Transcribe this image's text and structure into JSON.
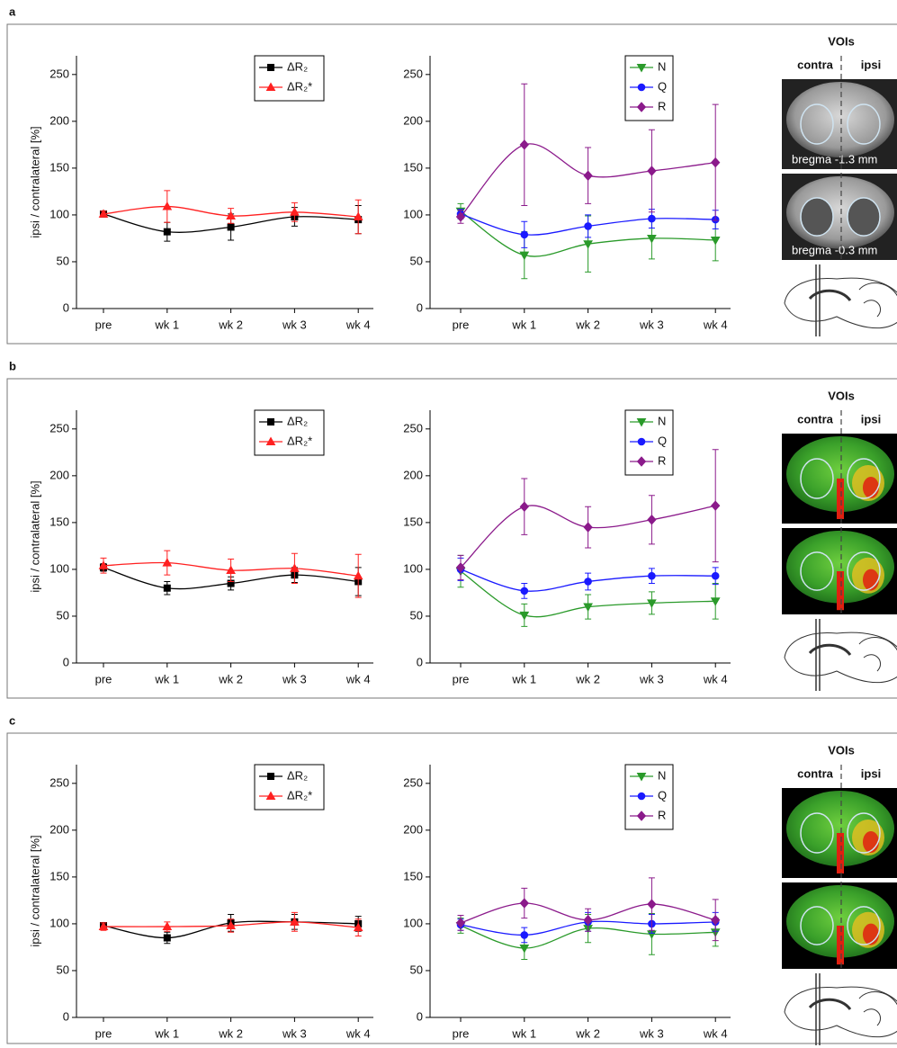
{
  "panels": [
    {
      "label": "a",
      "voi": {
        "title": "VOIs",
        "left": "contra",
        "right": "ipsi",
        "captions": [
          "bregma -1.3 mm",
          "bregma -0.3 mm"
        ]
      }
    },
    {
      "label": "b",
      "voi": {
        "title": "VOIs",
        "left": "contra",
        "right": "ipsi"
      }
    },
    {
      "label": "c",
      "voi": {
        "title": "VOIs",
        "left": "contra",
        "right": "ipsi"
      }
    }
  ],
  "chart_data": [
    {
      "type": "line",
      "ylabel": "ipsi / contralateral [%]",
      "categories": [
        "pre",
        "wk 1",
        "wk 2",
        "wk 3",
        "wk 4"
      ],
      "ylim": [
        0,
        270
      ],
      "yticks": [
        0,
        50,
        100,
        150,
        200,
        250
      ],
      "series": [
        {
          "name": "ΔR₂",
          "color": "#000000",
          "marker": "square",
          "values": [
            101,
            82,
            87,
            98,
            95
          ],
          "errors": [
            3,
            10,
            14,
            10,
            15
          ]
        },
        {
          "name": "ΔR₂*",
          "color": "#ff2020",
          "marker": "triangle-up",
          "values": [
            101,
            109,
            99,
            103,
            98
          ],
          "errors": [
            3,
            17,
            8,
            10,
            18
          ]
        }
      ]
    },
    {
      "type": "line",
      "categories": [
        "pre",
        "wk 1",
        "wk 2",
        "wk 3",
        "wk 4"
      ],
      "ylim": [
        0,
        270
      ],
      "yticks": [
        0,
        50,
        100,
        150,
        200,
        250
      ],
      "series": [
        {
          "name": "N",
          "color": "#2a9a2a",
          "marker": "triangle-down",
          "values": [
            104,
            57,
            69,
            75,
            73
          ],
          "errors": [
            8,
            25,
            30,
            22,
            22
          ]
        },
        {
          "name": "Q",
          "color": "#1a1aff",
          "marker": "circle",
          "values": [
            101,
            79,
            88,
            96,
            95
          ],
          "errors": [
            5,
            14,
            12,
            10,
            10
          ]
        },
        {
          "name": "R",
          "color": "#8b1a8b",
          "marker": "diamond",
          "values": [
            98,
            175,
            142,
            147,
            156
          ],
          "errors": [
            7,
            65,
            30,
            44,
            62
          ]
        }
      ]
    },
    {
      "type": "line",
      "ylabel": "ipsi / contralateral [%]",
      "categories": [
        "pre",
        "wk 1",
        "wk 2",
        "wk 3",
        "wk 4"
      ],
      "ylim": [
        0,
        270
      ],
      "yticks": [
        0,
        50,
        100,
        150,
        200,
        250
      ],
      "series": [
        {
          "name": "ΔR₂",
          "color": "#000000",
          "marker": "square",
          "values": [
            102,
            80,
            85,
            94,
            87
          ],
          "errors": [
            4,
            7,
            7,
            8,
            15
          ]
        },
        {
          "name": "ΔR₂*",
          "color": "#ff2020",
          "marker": "triangle-up",
          "values": [
            104,
            107,
            99,
            101,
            93
          ],
          "errors": [
            8,
            13,
            12,
            16,
            23
          ]
        }
      ]
    },
    {
      "type": "line",
      "categories": [
        "pre",
        "wk 1",
        "wk 2",
        "wk 3",
        "wk 4"
      ],
      "ylim": [
        0,
        270
      ],
      "yticks": [
        0,
        50,
        100,
        150,
        200,
        250
      ],
      "series": [
        {
          "name": "N",
          "color": "#2a9a2a",
          "marker": "triangle-down",
          "values": [
            98,
            51,
            60,
            64,
            66
          ],
          "errors": [
            17,
            12,
            13,
            12,
            19
          ]
        },
        {
          "name": "Q",
          "color": "#1a1aff",
          "marker": "circle",
          "values": [
            100,
            77,
            87,
            93,
            93
          ],
          "errors": [
            12,
            8,
            9,
            8,
            9
          ]
        },
        {
          "name": "R",
          "color": "#8b1a8b",
          "marker": "diamond",
          "values": [
            102,
            167,
            145,
            153,
            168
          ],
          "errors": [
            13,
            30,
            22,
            26,
            60
          ]
        }
      ]
    },
    {
      "type": "line",
      "ylabel": "ipsi / contralateral [%]",
      "categories": [
        "pre",
        "wk 1",
        "wk 2",
        "wk 3",
        "wk 4"
      ],
      "ylim": [
        0,
        270
      ],
      "yticks": [
        0,
        50,
        100,
        150,
        200,
        250
      ],
      "series": [
        {
          "name": "ΔR₂",
          "color": "#000000",
          "marker": "square",
          "values": [
            98,
            85,
            101,
            102,
            100
          ],
          "errors": [
            3,
            6,
            9,
            8,
            8
          ]
        },
        {
          "name": "ΔR₂*",
          "color": "#ff2020",
          "marker": "triangle-up",
          "values": [
            97,
            97,
            98,
            102,
            96
          ],
          "errors": [
            4,
            5,
            7,
            10,
            9
          ]
        }
      ]
    },
    {
      "type": "line",
      "categories": [
        "pre",
        "wk 1",
        "wk 2",
        "wk 3",
        "wk 4"
      ],
      "ylim": [
        0,
        270
      ],
      "yticks": [
        0,
        50,
        100,
        150,
        200,
        250
      ],
      "series": [
        {
          "name": "N",
          "color": "#2a9a2a",
          "marker": "triangle-down",
          "values": [
            98,
            74,
            95,
            89,
            91
          ],
          "errors": [
            8,
            12,
            15,
            22,
            15
          ]
        },
        {
          "name": "Q",
          "color": "#1a1aff",
          "marker": "circle",
          "values": [
            99,
            88,
            102,
            100,
            102
          ],
          "errors": [
            6,
            8,
            10,
            10,
            10
          ]
        },
        {
          "name": "R",
          "color": "#8b1a8b",
          "marker": "diamond",
          "values": [
            101,
            122,
            104,
            121,
            104
          ],
          "errors": [
            8,
            16,
            12,
            28,
            22
          ]
        }
      ]
    }
  ]
}
